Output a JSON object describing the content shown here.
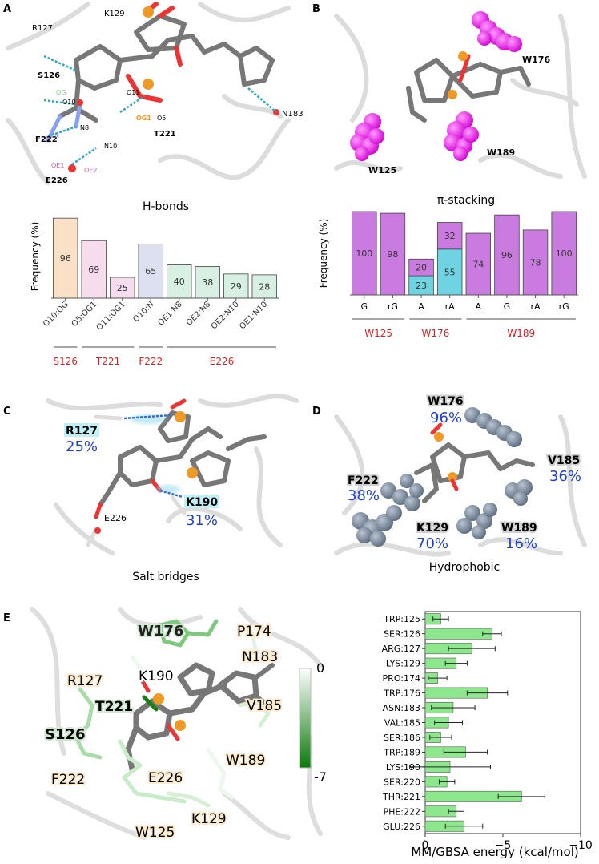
{
  "panels": {
    "a": "A",
    "b": "B",
    "c": "C",
    "d": "D",
    "e": "E"
  },
  "panel_a": {
    "residue_labels": [
      "K129",
      "R127",
      "S126",
      "F222",
      "E226",
      "T221",
      "N183"
    ],
    "atom_labels": [
      "OG",
      "O10",
      "N8",
      "N",
      "OE1",
      "OE2",
      "N10",
      "OG1",
      "O11",
      "O5"
    ],
    "caption": "H-bonds"
  },
  "panel_b": {
    "residue_labels": [
      "W176",
      "W125",
      "W189"
    ],
    "caption": "π-stacking"
  },
  "panel_c": {
    "residue_labels": [
      "R127",
      "K190",
      "E226"
    ],
    "percent_labels": [
      "25%",
      "31%"
    ],
    "caption": "Salt bridges"
  },
  "panel_d": {
    "residue_labels": [
      "W176",
      "V185",
      "F222",
      "K129",
      "W189"
    ],
    "percent_labels": [
      "96%",
      "36%",
      "38%",
      "70%",
      "16%"
    ],
    "caption": "Hydrophobic"
  },
  "panel_e": {
    "residue_labels": [
      "W176",
      "P174",
      "N183",
      "K190",
      "R127",
      "T221",
      "S126",
      "V185",
      "W189",
      "E226",
      "F222",
      "K129",
      "W125"
    ],
    "colorbar": {
      "max_label": "0",
      "min_label": "-7",
      "color_low": "#0a7a0a",
      "color_high": "#ffffff"
    }
  },
  "chart_data": [
    {
      "type": "bar",
      "title": "H-bonds",
      "xlabel": "",
      "ylabel": "Frequency (%)",
      "ylim": [
        0,
        100
      ],
      "categories": [
        "O10:OG",
        "O5:OG1",
        "O11:OG1",
        "O10:N",
        "OE1:N8",
        "OE2:N8",
        "OE2:N10",
        "OE1:N10"
      ],
      "values": [
        96,
        69,
        25,
        65,
        40,
        38,
        29,
        28
      ],
      "groups": [
        {
          "name": "S126",
          "categories": [
            "O10:OG"
          ]
        },
        {
          "name": "T221",
          "categories": [
            "O5:OG1",
            "O11:OG1"
          ]
        },
        {
          "name": "F222",
          "categories": [
            "O10:N"
          ]
        },
        {
          "name": "E226",
          "categories": [
            "OE1:N8",
            "OE2:N8",
            "OE2:N10",
            "OE1:N10"
          ]
        }
      ],
      "colors": [
        "#fbe0c8",
        "#f6dcec",
        "#f6dcec",
        "#dde0f1",
        "#d8f0e3",
        "#d8f0e3",
        "#d8f0e3",
        "#d8f0e3"
      ]
    },
    {
      "type": "bar",
      "title": "π-stacking",
      "xlabel": "",
      "ylabel": "Frequency (%)",
      "ylim": [
        0,
        100
      ],
      "categories": [
        "G",
        "rG",
        "A",
        "rA",
        "A",
        "G",
        "rA",
        "rG"
      ],
      "series": [
        {
          "name": "cyan",
          "color": "#6fd3e2",
          "values": [
            0,
            0,
            23,
            55,
            0,
            0,
            0,
            0
          ]
        },
        {
          "name": "magenta",
          "color": "#c97be0",
          "values": [
            100,
            98,
            20,
            32,
            74,
            96,
            78,
            100
          ]
        }
      ],
      "groups": [
        {
          "name": "W125",
          "categories": [
            "G",
            "rG"
          ]
        },
        {
          "name": "W176",
          "categories": [
            "A",
            "rA"
          ]
        },
        {
          "name": "W189",
          "categories": [
            "A",
            "G",
            "rA",
            "rG"
          ]
        }
      ]
    },
    {
      "type": "bar",
      "orientation": "horizontal",
      "title": "",
      "xlabel": "MM/GBSA energy (kcal/mol)",
      "ylabel": "",
      "xlim": [
        0,
        -10
      ],
      "xticks": [
        "0",
        "−5",
        "−10"
      ],
      "color": "#8de88d",
      "categories": [
        "TRP:125",
        "SER:126",
        "ARG:127",
        "LYS:129",
        "PRO:174",
        "TRP:176",
        "ASN:183",
        "VAL:185",
        "SER:186",
        "TRP:189",
        "LYS:190",
        "SER:220",
        "THR:221",
        "PHE:222",
        "GLU:226"
      ],
      "values": [
        -1.0,
        -4.3,
        -3.0,
        -2.0,
        -0.8,
        -4.0,
        -1.8,
        -1.5,
        -1.0,
        -2.6,
        -1.6,
        -1.4,
        -6.2,
        -2.0,
        -2.5
      ],
      "errors": [
        0.5,
        0.6,
        1.5,
        0.7,
        0.6,
        1.3,
        1.4,
        0.9,
        0.7,
        1.4,
        2.6,
        0.5,
        1.5,
        0.5,
        1.2
      ]
    }
  ]
}
